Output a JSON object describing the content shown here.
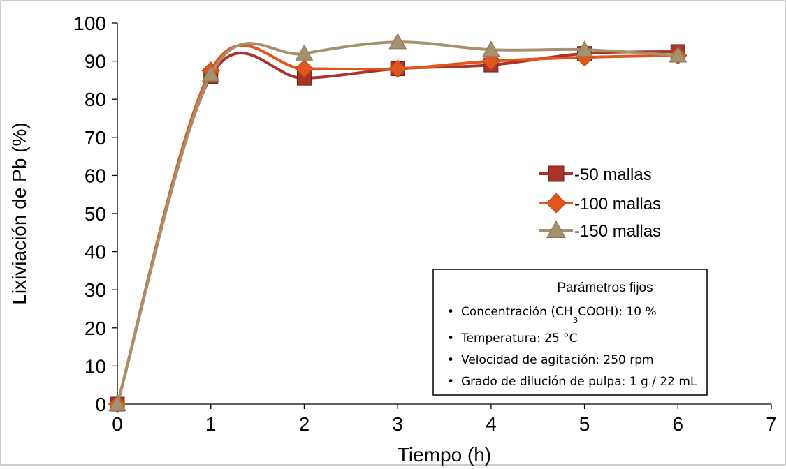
{
  "chart_data": {
    "type": "line",
    "smooth": true,
    "xlabel": "Tiempo (h)",
    "ylabel": "Lixiviación de Pb (%)",
    "xlim": [
      0,
      7
    ],
    "ylim": [
      0,
      100
    ],
    "x_ticks": [
      "0",
      "1",
      "2",
      "3",
      "4",
      "5",
      "6",
      "7"
    ],
    "y_ticks": [
      "0",
      "10",
      "20",
      "30",
      "40",
      "50",
      "60",
      "70",
      "80",
      "90",
      "100"
    ],
    "grid": false,
    "legend_position": "right-middle",
    "x": [
      0,
      1,
      2,
      3,
      4,
      5,
      6
    ],
    "series": [
      {
        "name": "-50 mallas",
        "marker": "square",
        "color": "#a9342a",
        "values": [
          0,
          86,
          85.5,
          88,
          89,
          92,
          92.5
        ]
      },
      {
        "name": "-100 mallas",
        "marker": "diamond",
        "color": "#e0561c",
        "values": [
          0,
          87.5,
          88,
          88,
          90,
          91,
          91.5
        ]
      },
      {
        "name": "-150 mallas",
        "marker": "triangle",
        "color": "#a6916e",
        "values": [
          0,
          86.5,
          92,
          95,
          93,
          93,
          91.5
        ]
      }
    ],
    "annotation_box": {
      "title": "Parámetros fijos",
      "items": [
        {
          "before": "Concentración (CH",
          "sub": "3",
          "after": "COOH): 10 %"
        },
        {
          "text": "Temperatura: 25  °C"
        },
        {
          "text": "Velocidad de agitación: 250 rpm"
        },
        {
          "text": "Grado de dilución de pulpa: 1 g / 22 mL"
        }
      ],
      "bullet": "•"
    }
  }
}
